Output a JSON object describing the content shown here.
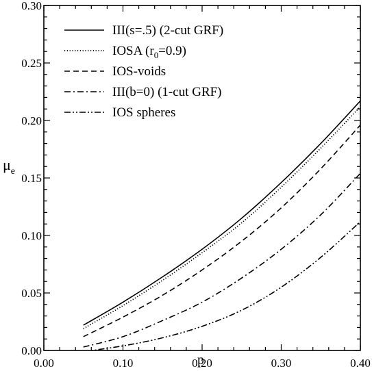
{
  "chart_data": {
    "type": "line",
    "xlabel": "p",
    "ylabel": "μ",
    "ylabel_subscript": "e",
    "xlim": [
      0.0,
      0.4
    ],
    "ylim": [
      0.0,
      0.3
    ],
    "xticks": [
      0.0,
      0.1,
      0.2,
      0.3,
      0.4
    ],
    "xtick_labels": [
      "0.00",
      "0.10",
      "0.20",
      "0.30",
      "0.40"
    ],
    "yticks": [
      0.0,
      0.05,
      0.1,
      0.15,
      0.2,
      0.25,
      0.3
    ],
    "ytick_labels": [
      "0.00",
      "0.05",
      "0.10",
      "0.15",
      "0.20",
      "0.25",
      "0.30"
    ],
    "grid": false,
    "legend_position": "top-left",
    "series": [
      {
        "name": "III(s=.5) (2-cut GRF)",
        "dash": "solid",
        "x": [
          0.05,
          0.1,
          0.15,
          0.2,
          0.25,
          0.3,
          0.35,
          0.4
        ],
        "y": [
          0.022,
          0.042,
          0.064,
          0.088,
          0.115,
          0.146,
          0.18,
          0.217
        ]
      },
      {
        "name": "IOSA (r0=0.9)",
        "dash": "dotted",
        "x": [
          0.05,
          0.1,
          0.15,
          0.2,
          0.25,
          0.3,
          0.35,
          0.4
        ],
        "y": [
          0.019,
          0.039,
          0.061,
          0.085,
          0.111,
          0.142,
          0.176,
          0.212
        ]
      },
      {
        "name": "IOS-voids",
        "dash": "dashed",
        "x": [
          0.05,
          0.1,
          0.15,
          0.2,
          0.25,
          0.3,
          0.35,
          0.4
        ],
        "y": [
          0.012,
          0.029,
          0.048,
          0.07,
          0.095,
          0.124,
          0.158,
          0.196
        ]
      },
      {
        "name": "III(b=0) (1-cut GRF)",
        "dash": "dashdot",
        "x": [
          0.05,
          0.1,
          0.15,
          0.2,
          0.25,
          0.3,
          0.35,
          0.4
        ],
        "y": [
          0.003,
          0.012,
          0.026,
          0.042,
          0.063,
          0.088,
          0.118,
          0.154
        ]
      },
      {
        "name": "IOS spheres",
        "dash": "dashdotdot",
        "x": [
          0.05,
          0.1,
          0.15,
          0.2,
          0.25,
          0.3,
          0.35,
          0.4
        ],
        "y": [
          -0.001,
          0.004,
          0.011,
          0.021,
          0.035,
          0.055,
          0.081,
          0.112
        ]
      }
    ],
    "legend_label_parts": [
      [
        {
          "t": "III(s=.5) (2-cut GRF)"
        }
      ],
      [
        {
          "t": "IOSA (r"
        },
        {
          "t": "0",
          "sub": true
        },
        {
          "t": "=0.9)"
        }
      ],
      [
        {
          "t": "IOS-voids"
        }
      ],
      [
        {
          "t": "III(b=0) (1-cut GRF)"
        }
      ],
      [
        {
          "t": "IOS spheres"
        }
      ]
    ]
  }
}
